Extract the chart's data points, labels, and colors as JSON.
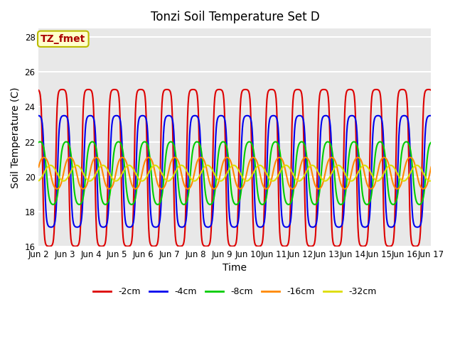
{
  "title": "Tonzi Soil Temperature Set D",
  "xlabel": "Time",
  "ylabel": "Soil Temperature (C)",
  "ylim": [
    16,
    28.5
  ],
  "annotation": "TZ_fmet",
  "annotation_color": "#aa0000",
  "annotation_bg": "#ffffcc",
  "annotation_border": "#bbbb00",
  "background_color": "#e8e8e8",
  "grid_color": "white",
  "series": [
    {
      "label": "-2cm",
      "color": "#dd0000",
      "amplitude": 4.5,
      "mean": 20.5,
      "phase": 0.0,
      "sharpness": 3.0
    },
    {
      "label": "-4cm",
      "color": "#0000ee",
      "amplitude": 3.2,
      "mean": 20.3,
      "phase": 0.07,
      "sharpness": 2.5
    },
    {
      "label": "-8cm",
      "color": "#00cc00",
      "amplitude": 1.8,
      "mean": 20.2,
      "phase": 0.15,
      "sharpness": 1.5
    },
    {
      "label": "-16cm",
      "color": "#ff8800",
      "amplitude": 0.9,
      "mean": 20.2,
      "phase": 0.3,
      "sharpness": 1.0
    },
    {
      "label": "-32cm",
      "color": "#dddd00",
      "amplitude": 0.45,
      "mean": 20.2,
      "phase": 0.55,
      "sharpness": 0.5
    }
  ],
  "tick_labels": [
    "Jun 2",
    "Jun 3",
    "Jun 4",
    "Jun 5",
    "Jun 6",
    "Jun 7",
    "Jun 8",
    "Jun 9",
    "Jun 10",
    "Jun 11",
    "Jun 12",
    "Jun 13",
    "Jun 14",
    "Jun 15",
    "Jun 16",
    "Jun 17"
  ],
  "linewidth": 1.5
}
